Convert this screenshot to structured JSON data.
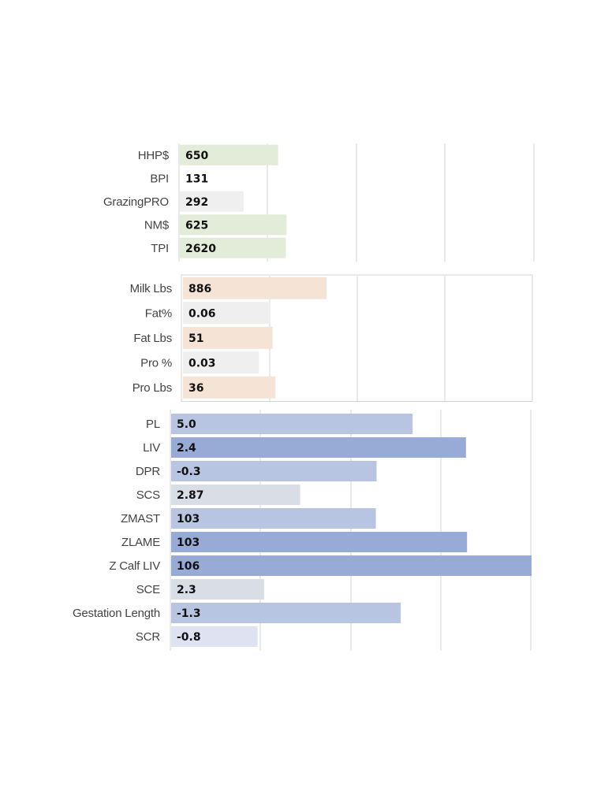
{
  "chart_data": [
    {
      "type": "bar",
      "orientation": "horizontal",
      "categories": [
        "HHP$",
        "BPI",
        "GrazingPRO",
        "NM$",
        "TPI"
      ],
      "values": [
        650,
        131,
        292,
        625,
        2620
      ],
      "value_labels": [
        "650",
        "131",
        "292",
        "625",
        "2620"
      ],
      "bar_colors": [
        "#e3ecd8",
        "#ffffff",
        "#efefef",
        "#e3ecd8",
        "#e3ecd8"
      ],
      "bar_fraction": [
        0.277,
        0.0,
        0.18,
        0.301,
        0.299
      ],
      "grid": true,
      "legend": "none"
    },
    {
      "type": "bar",
      "orientation": "horizontal",
      "categories": [
        "Milk Lbs",
        "Fat%",
        "Fat Lbs",
        "Pro %",
        "Pro Lbs"
      ],
      "values": [
        886,
        0.06,
        51,
        0.03,
        36
      ],
      "value_labels": [
        "886",
        "0.06",
        "51",
        "0.03",
        "36"
      ],
      "bar_colors": [
        "#f5e4d6",
        "#efefef",
        "#f5e4d6",
        "#efefef",
        "#f5e4d6"
      ],
      "bar_fraction": [
        0.41,
        0.25,
        0.256,
        0.217,
        0.264
      ],
      "grid": true,
      "legend": "none"
    },
    {
      "type": "bar",
      "orientation": "horizontal",
      "categories": [
        "PL",
        "LIV",
        "DPR",
        "SCS",
        "ZMAST",
        "ZLAME",
        "Z Calf LIV",
        "SCE",
        "Gestation Length",
        "SCR"
      ],
      "values": [
        5.0,
        2.4,
        -0.3,
        2.87,
        103,
        103,
        106,
        2.3,
        -1.3,
        -0.8
      ],
      "value_labels": [
        "5.0",
        "2.4",
        "-0.3",
        "2.87",
        "103",
        "103",
        "106",
        "2.3",
        "-1.3",
        "-0.8"
      ],
      "bar_colors": [
        "#b8c5e2",
        "#98abd6",
        "#b8c5e2",
        "#d9dde5",
        "#b8c5e2",
        "#98abd6",
        "#98abd6",
        "#d9dde5",
        "#b8c5e2",
        "#dfe3f1"
      ],
      "bar_fraction": [
        0.67,
        0.818,
        0.57,
        0.358,
        0.568,
        0.821,
        1.0,
        0.258,
        0.637,
        0.24
      ],
      "grid": true,
      "legend": "none"
    }
  ]
}
